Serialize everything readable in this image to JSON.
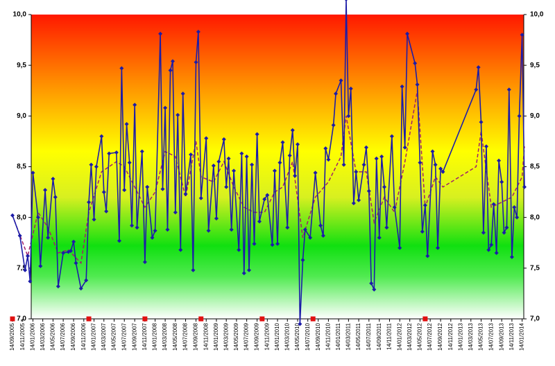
{
  "chart_data": {
    "type": "line",
    "xlim": [
      "2005-09-14",
      "2014-01-28"
    ],
    "ylim": [
      7,
      10
    ],
    "yticks": [
      {
        "value": 7,
        "label": "7,0"
      },
      {
        "value": 7.5,
        "label": "7,5"
      },
      {
        "value": 8,
        "label": "8,0"
      },
      {
        "value": 8.5,
        "label": "8,5"
      },
      {
        "value": 9,
        "label": "9,0"
      },
      {
        "value": 9.5,
        "label": "9,5"
      },
      {
        "value": 10,
        "label": "10,0"
      }
    ],
    "y2lim": [
      7,
      10
    ],
    "y2ticks": [
      {
        "value": 7,
        "label": "7,0"
      },
      {
        "value": 7.5,
        "label": "7,5"
      },
      {
        "value": 8,
        "label": "8,0"
      },
      {
        "value": 8.5,
        "label": "8,5"
      },
      {
        "value": 9,
        "label": "9,0"
      },
      {
        "value": 9.5,
        "label": "9,5"
      },
      {
        "value": 10,
        "label": "10,0"
      }
    ],
    "xticks": [
      {
        "value": "2005-09-14",
        "label": "14/09/2005"
      },
      {
        "value": "2005-11-14",
        "label": "14/11/2005"
      },
      {
        "value": "2006-01-14",
        "label": "14/01/2006"
      },
      {
        "value": "2006-03-14",
        "label": "14/03/2006"
      },
      {
        "value": "2006-05-14",
        "label": "14/05/2006"
      },
      {
        "value": "2006-07-14",
        "label": "14/07/2006"
      },
      {
        "value": "2006-09-14",
        "label": "14/09/2006"
      },
      {
        "value": "2006-11-14",
        "label": "14/11/2006"
      },
      {
        "value": "2007-01-14",
        "label": "14/01/2007"
      },
      {
        "value": "2007-03-14",
        "label": "14/03/2007"
      },
      {
        "value": "2007-05-14",
        "label": "14/05/2007"
      },
      {
        "value": "2007-07-14",
        "label": "14/07/2007"
      },
      {
        "value": "2007-09-14",
        "label": "14/09/2007"
      },
      {
        "value": "2007-11-14",
        "label": "14/11/2007"
      },
      {
        "value": "2008-01-14",
        "label": "14/01/2008"
      },
      {
        "value": "2008-03-14",
        "label": "14/03/2008"
      },
      {
        "value": "2008-05-14",
        "label": "14/05/2008"
      },
      {
        "value": "2008-07-14",
        "label": "14/07/2008"
      },
      {
        "value": "2008-09-14",
        "label": "14/09/2008"
      },
      {
        "value": "2008-11-14",
        "label": "14/11/2008"
      },
      {
        "value": "2009-01-14",
        "label": "14/01/2009"
      },
      {
        "value": "2009-03-14",
        "label": "14/03/2009"
      },
      {
        "value": "2009-05-14",
        "label": "14/05/2009"
      },
      {
        "value": "2009-07-14",
        "label": "14/07/2009"
      },
      {
        "value": "2009-09-14",
        "label": "14/09/2009"
      },
      {
        "value": "2009-11-14",
        "label": "14/11/2009"
      },
      {
        "value": "2010-01-14",
        "label": "14/01/2010"
      },
      {
        "value": "2010-03-14",
        "label": "14/03/2010"
      },
      {
        "value": "2010-05-14",
        "label": "14/05/2010"
      },
      {
        "value": "2010-07-14",
        "label": "14/07/2010"
      },
      {
        "value": "2010-09-14",
        "label": "14/09/2010"
      },
      {
        "value": "2010-11-14",
        "label": "14/11/2010"
      },
      {
        "value": "2011-01-14",
        "label": "14/01/2011"
      },
      {
        "value": "2011-03-14",
        "label": "14/03/2011"
      },
      {
        "value": "2011-05-14",
        "label": "14/05/2011"
      },
      {
        "value": "2011-07-14",
        "label": "14/07/2011"
      },
      {
        "value": "2011-09-14",
        "label": "14/09/2011"
      },
      {
        "value": "2011-11-14",
        "label": "14/11/2011"
      },
      {
        "value": "2012-01-14",
        "label": "14/01/2012"
      },
      {
        "value": "2012-03-14",
        "label": "14/03/2012"
      },
      {
        "value": "2012-05-14",
        "label": "14/05/2012"
      },
      {
        "value": "2012-07-14",
        "label": "14/07/2012"
      },
      {
        "value": "2012-09-14",
        "label": "14/09/2012"
      },
      {
        "value": "2012-11-14",
        "label": "14/11/2012"
      },
      {
        "value": "2013-01-14",
        "label": "14/01/2013"
      },
      {
        "value": "2013-03-14",
        "label": "14/03/2013"
      },
      {
        "value": "2013-05-14",
        "label": "14/05/2013"
      },
      {
        "value": "2013-07-14",
        "label": "14/07/2013"
      },
      {
        "value": "2013-09-14",
        "label": "14/09/2013"
      },
      {
        "value": "2013-11-14",
        "label": "14/11/2013"
      },
      {
        "value": "2014-01-14",
        "label": "14/01/2014"
      }
    ],
    "series": [
      {
        "color": "#1c1ca8",
        "markers": true,
        "dashed": false,
        "x": [
          "2005-09-14",
          "2005-10-28",
          "2005-11-28",
          "2005-12-14",
          "2005-12-28",
          "2006-01-14",
          "2006-02-14",
          "2006-02-28",
          "2006-03-28",
          "2006-04-14",
          "2006-05-14",
          "2006-05-28",
          "2006-06-14",
          "2006-07-14",
          "2006-08-14",
          "2006-08-28",
          "2006-09-14",
          "2006-09-28",
          "2006-10-28",
          "2006-11-28",
          "2006-12-14",
          "2006-12-28",
          "2007-01-14",
          "2007-01-28",
          "2007-02-28",
          "2007-03-14",
          "2007-03-28",
          "2007-04-14",
          "2007-05-28",
          "2007-06-14",
          "2007-06-28",
          "2007-07-14",
          "2007-07-28",
          "2007-08-14",
          "2007-08-28",
          "2007-09-14",
          "2007-09-28",
          "2007-10-28",
          "2007-11-14",
          "2007-11-28",
          "2007-12-28",
          "2008-01-14",
          "2008-02-14",
          "2008-02-28",
          "2008-03-14",
          "2008-03-28",
          "2008-04-14",
          "2008-04-28",
          "2008-05-14",
          "2008-05-28",
          "2008-06-14",
          "2008-06-28",
          "2008-07-14",
          "2008-08-14",
          "2008-08-28",
          "2008-09-14",
          "2008-09-28",
          "2008-10-14",
          "2008-11-14",
          "2008-11-28",
          "2008-12-28",
          "2009-01-14",
          "2009-01-28",
          "2009-02-28",
          "2009-03-14",
          "2009-03-28",
          "2009-04-14",
          "2009-04-28",
          "2009-05-28",
          "2009-06-14",
          "2009-06-28",
          "2009-07-14",
          "2009-07-28",
          "2009-08-14",
          "2009-08-28",
          "2009-09-14",
          "2009-09-28",
          "2009-10-28",
          "2009-11-14",
          "2009-12-14",
          "2009-12-28",
          "2010-01-14",
          "2010-01-28",
          "2010-02-14",
          "2010-03-14",
          "2010-03-28",
          "2010-04-14",
          "2010-04-28",
          "2010-05-14",
          "2010-05-28",
          "2010-06-14",
          "2010-06-28",
          "2010-07-28",
          "2010-08-28",
          "2010-09-28",
          "2010-10-14",
          "2010-10-28",
          "2010-11-14",
          "2010-12-14",
          "2010-12-28",
          "2011-01-28",
          "2011-02-14",
          "2011-02-28",
          "2011-03-14",
          "2011-03-28",
          "2011-04-14",
          "2011-04-28",
          "2011-05-14",
          "2011-06-14",
          "2011-06-28",
          "2011-07-14",
          "2011-07-28",
          "2011-08-14",
          "2011-08-28",
          "2011-09-14",
          "2011-09-28",
          "2011-10-14",
          "2011-10-28",
          "2011-11-28",
          "2011-12-14",
          "2012-01-14",
          "2012-01-28",
          "2012-02-14",
          "2012-02-28",
          "2012-04-14",
          "2012-04-28",
          "2012-05-14",
          "2012-05-28",
          "2012-06-14",
          "2012-06-28",
          "2012-07-28",
          "2012-08-14",
          "2012-08-28",
          "2012-09-14",
          "2012-09-28",
          "2013-04-14",
          "2013-04-28",
          "2013-05-14",
          "2013-05-28",
          "2013-06-14",
          "2013-06-28",
          "2013-07-14",
          "2013-07-28",
          "2013-08-14",
          "2013-08-28",
          "2013-09-14",
          "2013-09-28",
          "2013-10-14",
          "2013-10-28",
          "2013-11-14",
          "2013-11-28",
          "2013-12-14",
          "2013-12-28",
          "2014-01-14",
          "2014-01-28"
        ],
        "values": [
          8.02,
          7.82,
          7.48,
          7.62,
          7.37,
          8.44,
          8.0,
          7.52,
          8.27,
          7.8,
          8.38,
          8.2,
          7.32,
          7.65,
          7.66,
          7.67,
          7.76,
          7.55,
          7.3,
          7.38,
          8.15,
          8.52,
          7.98,
          8.5,
          8.8,
          8.25,
          8.06,
          8.63,
          8.64,
          7.77,
          9.47,
          8.27,
          8.92,
          8.54,
          7.92,
          9.11,
          7.9,
          8.65,
          7.56,
          8.3,
          7.8,
          7.87,
          9.81,
          8.28,
          9.08,
          7.88,
          9.45,
          9.54,
          8.05,
          9.01,
          7.68,
          9.22,
          8.23,
          8.62,
          7.48,
          9.53,
          9.83,
          8.19,
          8.78,
          7.87,
          8.51,
          7.99,
          8.55,
          8.77,
          8.3,
          8.58,
          7.88,
          8.46,
          7.68,
          8.63,
          7.45,
          8.6,
          7.48,
          8.52,
          7.74,
          8.82,
          7.96,
          8.18,
          8.22,
          7.73,
          8.46,
          7.74,
          8.54,
          8.74,
          7.9,
          8.61,
          8.86,
          8.41,
          8.72,
          6.95,
          7.58,
          7.88,
          7.8,
          8.44,
          7.92,
          7.82,
          8.68,
          8.57,
          8.91,
          9.22,
          9.35,
          8.52,
          10.15,
          9.0,
          9.27,
          8.14,
          8.45,
          8.17,
          8.52,
          8.69,
          8.26,
          7.35,
          7.29,
          8.58,
          7.8,
          8.6,
          8.3,
          7.9,
          8.8,
          8.1,
          7.7,
          9.29,
          8.69,
          9.81,
          9.52,
          9.31,
          8.54,
          7.86,
          8.12,
          7.62,
          8.65,
          8.52,
          7.7,
          8.48,
          8.45,
          9.26,
          9.48,
          8.94,
          7.85,
          8.7,
          7.68,
          7.73,
          8.13,
          7.65,
          8.56,
          8.35,
          7.85,
          7.9,
          9.26,
          7.61,
          8.1,
          8.0,
          9.0,
          9.8,
          8.3
        ]
      },
      {
        "color": "#a0206a",
        "markers": false,
        "dashed": true,
        "x": [
          "2005-09-14",
          "2005-12-14",
          "2006-02-14",
          "2006-04-14",
          "2006-06-14",
          "2006-08-14",
          "2006-10-28",
          "2006-12-14",
          "2007-02-28",
          "2007-05-28",
          "2007-07-14",
          "2007-09-14",
          "2007-11-14",
          "2008-01-14",
          "2008-03-14",
          "2008-05-14",
          "2008-07-14",
          "2008-09-14",
          "2008-10-14",
          "2008-12-28",
          "2009-02-28",
          "2009-04-28",
          "2009-06-28",
          "2009-08-28",
          "2009-10-28",
          "2009-12-28",
          "2010-02-14",
          "2010-04-14",
          "2010-06-14",
          "2010-08-28",
          "2010-11-14",
          "2011-01-28",
          "2011-02-28",
          "2011-04-28",
          "2011-06-28",
          "2011-08-14",
          "2011-10-14",
          "2011-12-14",
          "2012-02-14",
          "2012-04-28",
          "2012-06-14",
          "2012-08-14",
          "2012-09-28",
          "2013-04-14",
          "2013-05-14",
          "2013-07-14",
          "2013-09-14",
          "2013-11-14",
          "2014-01-14",
          "2014-01-28"
        ],
        "values": [
          8.02,
          7.62,
          8.05,
          7.9,
          7.65,
          7.68,
          7.55,
          8.05,
          8.45,
          8.55,
          8.5,
          8.3,
          8.1,
          8.25,
          8.65,
          8.6,
          8.2,
          8.75,
          8.4,
          8.35,
          8.55,
          8.3,
          8.1,
          8.05,
          8.05,
          8.25,
          8.3,
          8.55,
          7.8,
          8.2,
          8.35,
          8.6,
          9.0,
          8.45,
          8.45,
          7.95,
          8.2,
          8.05,
          8.55,
          9.25,
          8.1,
          8.4,
          8.3,
          8.5,
          8.85,
          8.1,
          8.15,
          8.2,
          8.4,
          8.7
        ]
      }
    ],
    "event_markers": {
      "color": "#e01010",
      "x": [
        "2005-09-14",
        "2006-12-14",
        "2007-11-14",
        "2008-10-14",
        "2009-10-14",
        "2010-08-14",
        "2012-06-14"
      ],
      "values": [
        7,
        7,
        7,
        7,
        7,
        7,
        7
      ]
    }
  }
}
